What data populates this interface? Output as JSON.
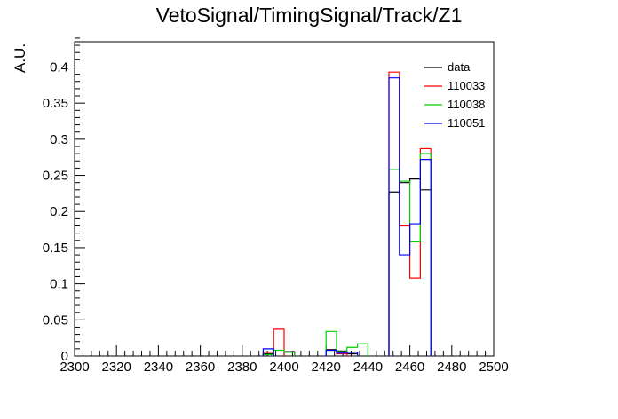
{
  "chart_data": {
    "type": "histogram",
    "title": "VetoSignal/TimingSignal/Track/Z1",
    "xlabel": "",
    "ylabel": "A.U.",
    "xlim": [
      2300,
      2500
    ],
    "ylim": [
      0,
      0.435
    ],
    "x_ticks": [
      2300,
      2320,
      2340,
      2360,
      2380,
      2400,
      2420,
      2440,
      2460,
      2480,
      2500
    ],
    "y_ticks": [
      0,
      0.05,
      0.1,
      0.15,
      0.2,
      0.25,
      0.3,
      0.35,
      0.4
    ],
    "y_tick_labels": [
      "0",
      "0.05",
      "0.1",
      "0.15",
      "0.2",
      "0.25",
      "0.3",
      "0.35",
      "0.4"
    ],
    "bin_width": 5,
    "legend_position": "top-right",
    "series": [
      {
        "name": "data",
        "color": "#000000",
        "bins": [
          [
            2390,
            0.003
          ],
          [
            2400,
            0.006
          ],
          [
            2420,
            0.009
          ],
          [
            2425,
            0.007
          ],
          [
            2430,
            0.003
          ],
          [
            2450,
            0.227
          ],
          [
            2455,
            0.24
          ],
          [
            2460,
            0.245
          ],
          [
            2465,
            0.23
          ]
        ]
      },
      {
        "name": "110033",
        "color": "#ff0000",
        "bins": [
          [
            2390,
            0.005
          ],
          [
            2395,
            0.037
          ],
          [
            2420,
            0.008
          ],
          [
            2425,
            0.003
          ],
          [
            2450,
            0.393
          ],
          [
            2455,
            0.18
          ],
          [
            2460,
            0.108
          ],
          [
            2465,
            0.287
          ]
        ]
      },
      {
        "name": "110038",
        "color": "#00cc00",
        "bins": [
          [
            2390,
            0.002
          ],
          [
            2395,
            0.008
          ],
          [
            2400,
            0.005
          ],
          [
            2420,
            0.034
          ],
          [
            2425,
            0.006
          ],
          [
            2430,
            0.012
          ],
          [
            2435,
            0.017
          ],
          [
            2450,
            0.258
          ],
          [
            2455,
            0.242
          ],
          [
            2460,
            0.158
          ],
          [
            2465,
            0.28
          ]
        ]
      },
      {
        "name": "110051",
        "color": "#0000ff",
        "bins": [
          [
            2390,
            0.01
          ],
          [
            2420,
            0.008
          ],
          [
            2425,
            0.004
          ],
          [
            2430,
            0.005
          ],
          [
            2450,
            0.385
          ],
          [
            2455,
            0.14
          ],
          [
            2460,
            0.183
          ],
          [
            2465,
            0.272
          ]
        ]
      }
    ]
  }
}
